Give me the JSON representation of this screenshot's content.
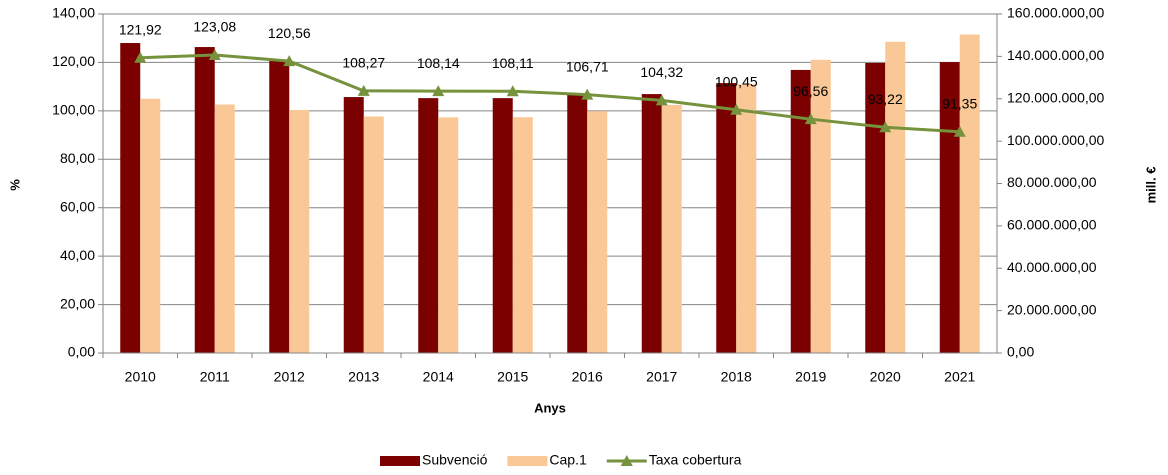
{
  "chart_data": {
    "type": "bar_line",
    "x_label": "Anys",
    "y_label": "%",
    "y2_label": "mill. €",
    "categories": [
      "2010",
      "2011",
      "2012",
      "2013",
      "2014",
      "2015",
      "2016",
      "2017",
      "2018",
      "2019",
      "2020",
      "2021"
    ],
    "series": [
      {
        "name": "Subvenció",
        "type": "bar",
        "axis": "y2",
        "color": "#7b0000",
        "values": [
          146300000,
          144400000,
          138300000,
          120800000,
          120300000,
          120300000,
          121800000,
          122200000,
          127400000,
          133600000,
          136900000,
          137300000
        ]
      },
      {
        "name": "Cap.1",
        "type": "bar",
        "axis": "y2",
        "color": "#fac896",
        "values": [
          120000000,
          117300000,
          114700000,
          111600000,
          111200000,
          111300000,
          114100000,
          117100000,
          126800000,
          138400000,
          146900000,
          150300000
        ]
      },
      {
        "name": "Taxa cobertura",
        "type": "line",
        "axis": "y",
        "color": "#76923c",
        "values": [
          121.92,
          123.08,
          120.56,
          108.27,
          108.14,
          108.11,
          106.71,
          104.32,
          100.45,
          96.56,
          93.22,
          91.35
        ],
        "value_labels": [
          "121,92",
          "123,08",
          "120,56",
          "108,27",
          "108,14",
          "108,11",
          "106,71",
          "104,32",
          "100,45",
          "96,56",
          "93,22",
          "91,35"
        ]
      }
    ],
    "ylim": [
      0,
      140
    ],
    "yticks": [
      {
        "value": 0,
        "label": "0,00"
      },
      {
        "value": 20,
        "label": "20,00"
      },
      {
        "value": 40,
        "label": "40,00"
      },
      {
        "value": 60,
        "label": "60,00"
      },
      {
        "value": 80,
        "label": "80,00"
      },
      {
        "value": 100,
        "label": "100,00"
      },
      {
        "value": 120,
        "label": "120,00"
      },
      {
        "value": 140,
        "label": "140,00"
      }
    ],
    "y2lim": [
      0,
      160000000
    ],
    "y2ticks": [
      {
        "value": 0,
        "label": "0,00"
      },
      {
        "value": 20000000,
        "label": "20.000.000,00"
      },
      {
        "value": 40000000,
        "label": "40.000.000,00"
      },
      {
        "value": 60000000,
        "label": "60.000.000,00"
      },
      {
        "value": 80000000,
        "label": "80.000.000,00"
      },
      {
        "value": 100000000,
        "label": "100.000.000,00"
      },
      {
        "value": 120000000,
        "label": "120.000.000,00"
      },
      {
        "value": 140000000,
        "label": "140.000.000,00"
      },
      {
        "value": 160000000,
        "label": "160.000.000,00"
      }
    ],
    "grid": true,
    "legend": "bottom"
  }
}
